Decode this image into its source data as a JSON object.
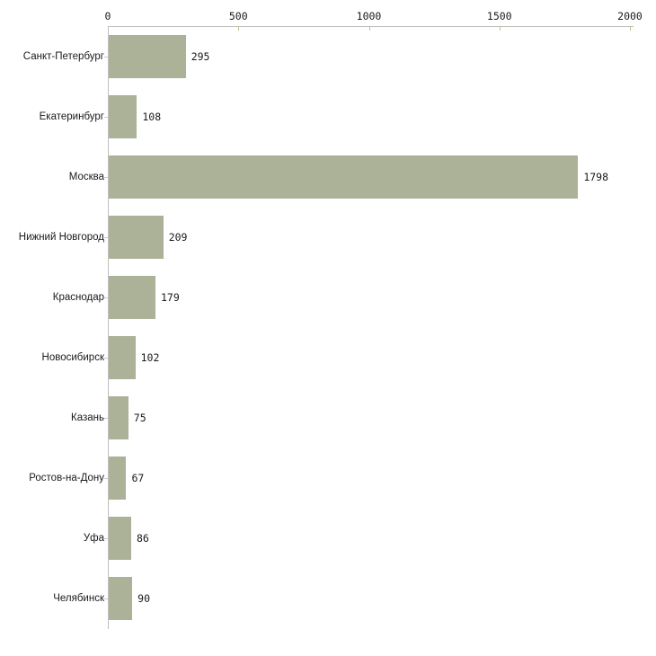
{
  "chart_data": {
    "type": "bar",
    "orientation": "horizontal",
    "title": "",
    "xlabel": "",
    "ylabel": "",
    "categories": [
      "Санкт-Петербург",
      "Екатеринбург",
      "Москва",
      "Нижний Новгород",
      "Краснодар",
      "Новосибирск",
      "Казань",
      "Ростов-на-Дону",
      "Уфа",
      "Челябинск"
    ],
    "values": [
      295,
      108,
      1798,
      209,
      179,
      102,
      75,
      67,
      86,
      90
    ],
    "value_labels": [
      "295",
      "108",
      "1798",
      "209",
      "179",
      "102",
      "75",
      "67",
      "86",
      "90"
    ],
    "xlim": [
      0,
      2000
    ],
    "x_ticks": [
      0,
      500,
      1000,
      1500,
      2000
    ],
    "x_tick_labels": [
      "0",
      "500",
      "1000",
      "1500",
      "2000"
    ],
    "x_axis_position": "top",
    "grid": false,
    "legend": null,
    "colors": {
      "bar_fill": "#abb298",
      "axis_line": "#c0c0c0",
      "x_tick_mark": "#c2bd92",
      "category_tick_mark": "#cfccbc",
      "text": "#1a1a1a",
      "background": "#ffffff"
    }
  }
}
